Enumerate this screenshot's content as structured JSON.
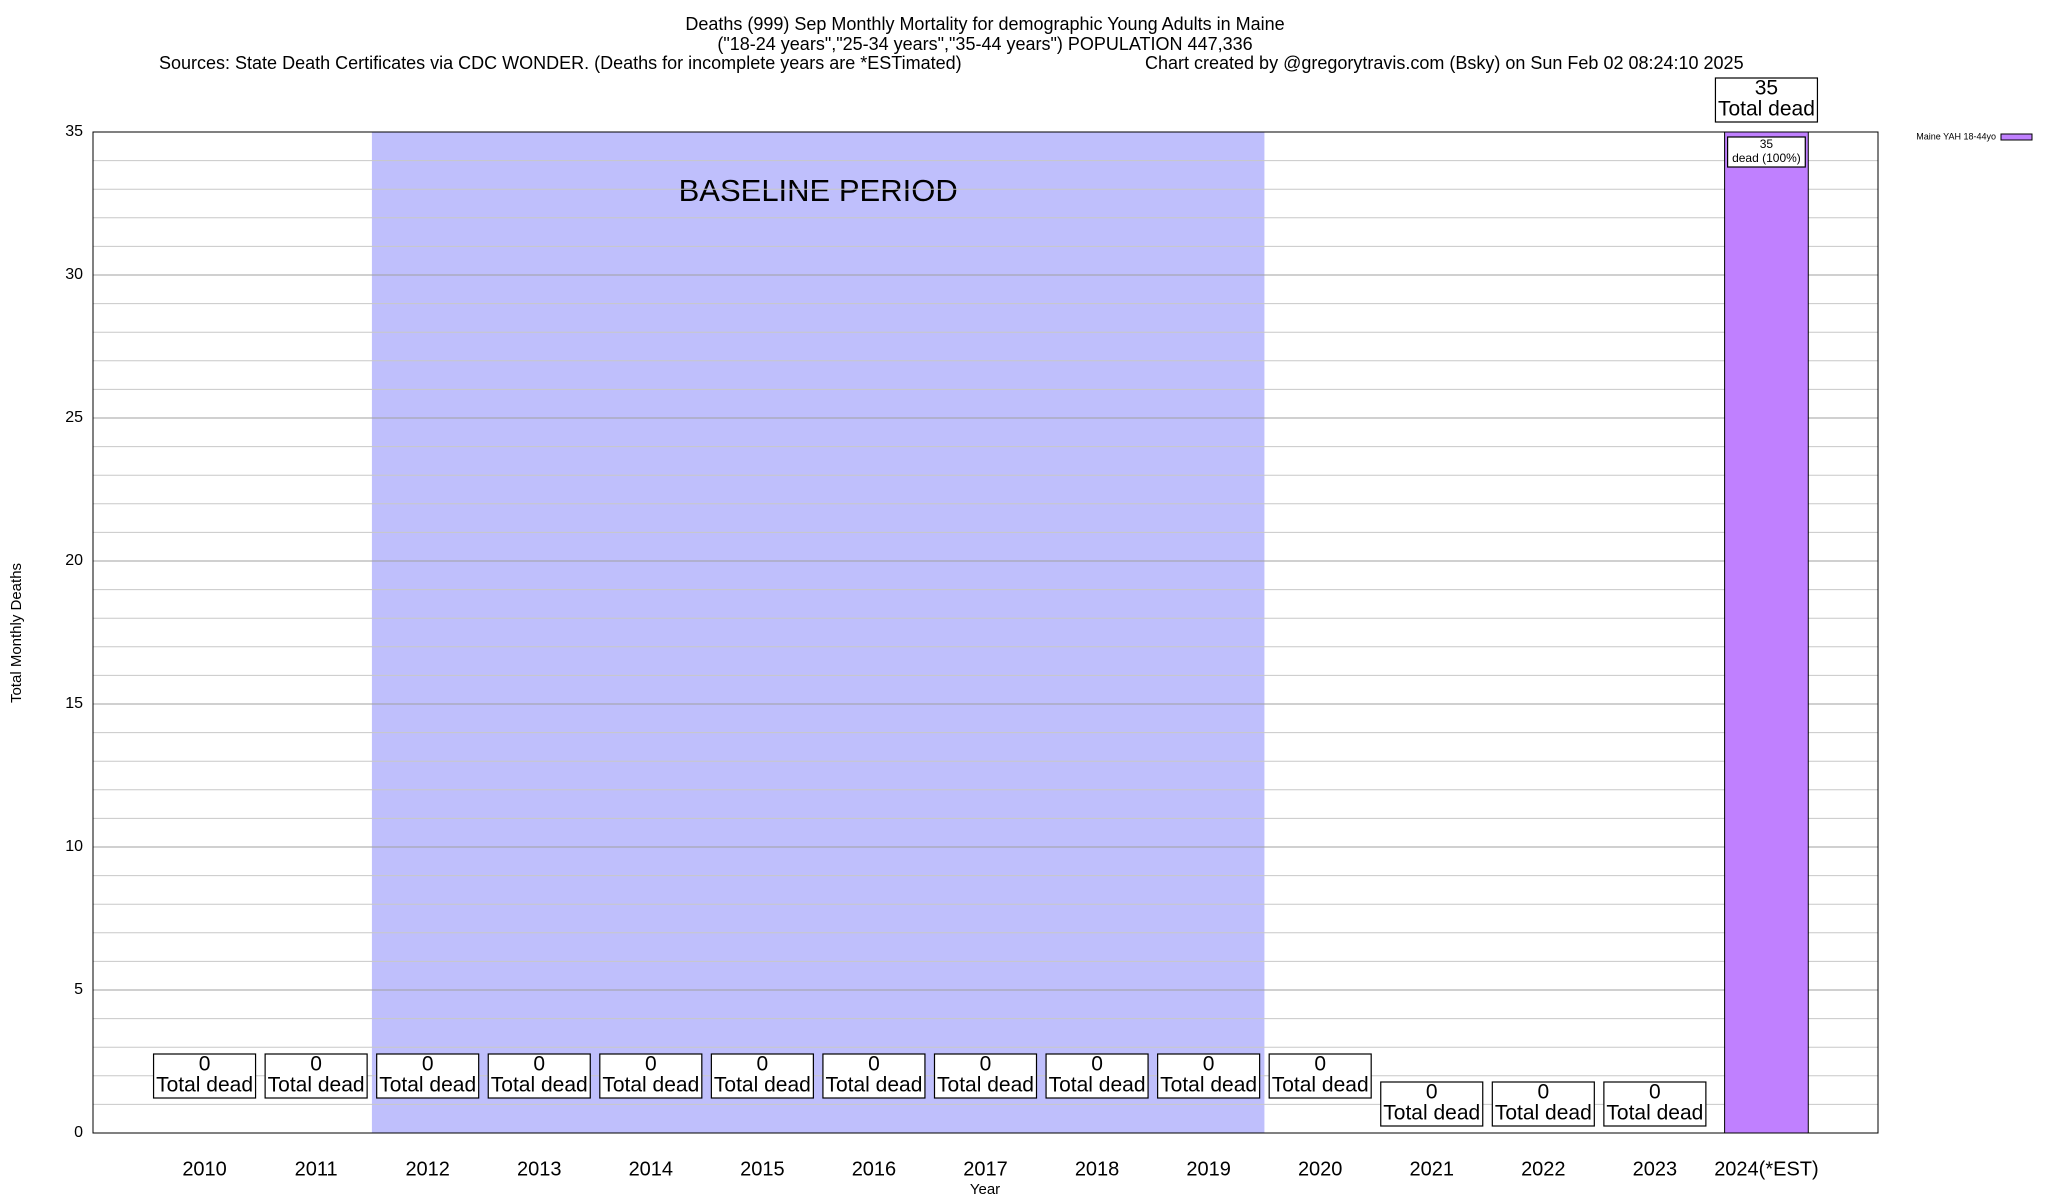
{
  "chart_data": {
    "type": "bar",
    "title": "Deaths (999) Sep Monthly Mortality for demographic Young Adults in Maine",
    "subtitle": "(\"18-24 years\",\"25-34 years\",\"35-44 years\") POPULATION 447,336",
    "sources": "Sources: State Death Certificates via CDC WONDER. (Deaths for incomplete years are *ESTimated)",
    "credit": "Chart created by @gregorytravis.com (Bsky) on Sun Feb 02 08:24:10 2025",
    "xlabel": "Year",
    "ylabel": "Total Monthly Deaths",
    "annotation": "BASELINE PERIOD",
    "baseline_period": [
      "2012",
      "2019"
    ],
    "baseline_color": "#bfbffc",
    "categories": [
      "2010",
      "2011",
      "2012",
      "2013",
      "2014",
      "2015",
      "2016",
      "2017",
      "2018",
      "2019",
      "2020",
      "2021",
      "2022",
      "2023",
      "2024(*EST)"
    ],
    "series": [
      {
        "name": "Maine YAH 18-44yo",
        "color": "#c080ff",
        "values": [
          0,
          0,
          0,
          0,
          0,
          0,
          0,
          0,
          0,
          0,
          0,
          0,
          0,
          0,
          35
        ]
      }
    ],
    "total_label": "Total dead",
    "segment_label": "dead (100%)",
    "ylim": [
      0,
      35
    ],
    "yticks": [
      0,
      5,
      10,
      15,
      20,
      25,
      30,
      35
    ],
    "yminorticks": [
      1,
      2,
      3,
      4,
      6,
      7,
      8,
      9,
      11,
      12,
      13,
      14,
      16,
      17,
      18,
      19,
      21,
      22,
      23,
      24,
      26,
      27,
      28,
      29,
      31,
      32,
      33,
      34
    ],
    "grid": true,
    "legend": "top-right"
  }
}
